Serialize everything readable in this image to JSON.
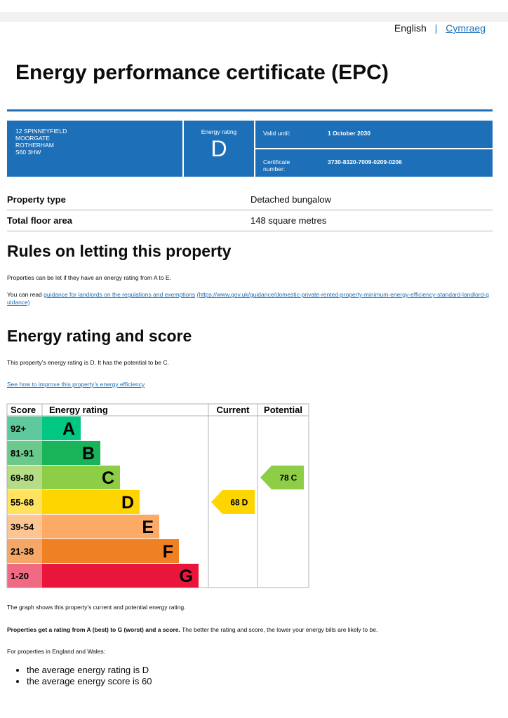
{
  "language": {
    "current": "English",
    "separator": "|",
    "other": "Cymraeg"
  },
  "title": "Energy performance certificate (EPC)",
  "summary": {
    "address": [
      "12 SPINNEYFIELD",
      "MOORGATE",
      "ROTHERHAM",
      "S60 3HW"
    ],
    "rating_label": "Energy rating",
    "rating": "D",
    "valid_label": "Valid until:",
    "valid_value": "1 October 2030",
    "cert_label": "Certificate number:",
    "cert_value": "3730-8320-7009-0209-0206"
  },
  "details": [
    {
      "label": "Property type",
      "value": "Detached bungalow"
    },
    {
      "label": "Total floor area",
      "value": "148 square metres"
    }
  ],
  "letting": {
    "heading": "Rules on letting this property",
    "para": "Properties can be let if they have an energy rating from A to E.",
    "read_prefix": "You can read",
    "link": "guidance for landlords on the regulations and exemptions",
    "url": "(https://www.gov.uk/guidance/domestic-private-rented-property-minimum-energy-efficiency-standard-landlord-guidance)"
  },
  "rating_section": {
    "heading": "Energy rating and score",
    "para": "This property’s energy rating is D. It has the potential to be C.",
    "link": "See how to improve this property’s energy efficiency"
  },
  "graph": {
    "headers": [
      "Score",
      "Energy rating",
      "Current",
      "Potential"
    ],
    "bands": [
      {
        "range": "92+",
        "letter": "A",
        "color": "#00c781",
        "tint": "#5fc89c"
      },
      {
        "range": "81-91",
        "letter": "B",
        "color": "#19b459",
        "tint": "#6bc98b"
      },
      {
        "range": "69-80",
        "letter": "C",
        "color": "#8dce46",
        "tint": "#b4dd86"
      },
      {
        "range": "55-68",
        "letter": "D",
        "color": "#ffd500",
        "tint": "#ffe35f"
      },
      {
        "range": "39-54",
        "letter": "E",
        "color": "#fcaa65",
        "tint": "#fdc494"
      },
      {
        "range": "21-38",
        "letter": "F",
        "color": "#ef8023",
        "tint": "#f4a766"
      },
      {
        "range": "1-20",
        "letter": "G",
        "color": "#e9153b",
        "tint": "#f06a83"
      }
    ],
    "current": {
      "score": 68,
      "letter": "D"
    },
    "potential": {
      "score": 78,
      "letter": "C"
    }
  },
  "notes": {
    "graph_note": "The graph shows this property’s current and potential energy rating.",
    "bold": "Properties get a rating from A (best) to G (worst) and a score.",
    "rest": "The better the rating and score, the lower your energy bills are likely to be.",
    "intro": "For properties in England and Wales:",
    "bullets": [
      "the average energy rating is D",
      "the average energy score is 60"
    ]
  }
}
